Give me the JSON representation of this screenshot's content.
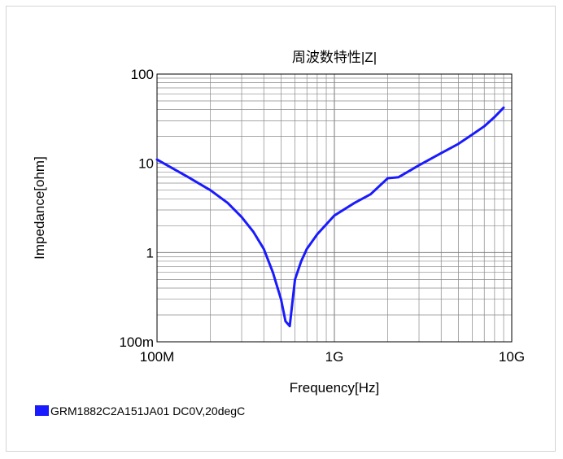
{
  "chart_data": {
    "type": "line",
    "title": "周波数特性|Z|",
    "xlabel": "Frequency[Hz]",
    "ylabel": "Impedance[ohm]",
    "x_scale": "log",
    "y_scale": "log",
    "xlim": [
      100000000,
      10000000000
    ],
    "ylim": [
      0.1,
      100
    ],
    "x_ticks": [
      {
        "value": 100000000,
        "label": "100M"
      },
      {
        "value": 1000000000,
        "label": "1G"
      },
      {
        "value": 10000000000,
        "label": "10G"
      }
    ],
    "y_ticks": [
      {
        "value": 100,
        "label": "100"
      },
      {
        "value": 10,
        "label": "10"
      },
      {
        "value": 1,
        "label": "1"
      },
      {
        "value": 0.1,
        "label": "100m"
      }
    ],
    "grid": true,
    "legend_position": "bottom-left",
    "series": [
      {
        "name": "GRM1882C2A151JA01 DC0V,20degC",
        "color": "#1a1aff",
        "x": [
          100000000,
          150000000,
          200000000,
          250000000,
          300000000,
          350000000,
          400000000,
          450000000,
          500000000,
          530000000,
          560000000,
          600000000,
          650000000,
          700000000,
          800000000,
          1000000000,
          1300000000,
          1600000000,
          2000000000,
          2300000000,
          3000000000,
          4000000000,
          5000000000,
          6000000000,
          7000000000,
          8000000000,
          9000000000
        ],
        "y": [
          11,
          7,
          5,
          3.6,
          2.5,
          1.7,
          1.1,
          0.6,
          0.3,
          0.17,
          0.15,
          0.5,
          0.8,
          1.1,
          1.6,
          2.6,
          3.6,
          4.5,
          6.8,
          7,
          9.5,
          13,
          16.5,
          21,
          26,
          33,
          42
        ]
      }
    ]
  }
}
